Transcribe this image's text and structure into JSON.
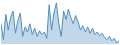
{
  "chart_data": {
    "type": "area",
    "values": [
      55,
      30,
      70,
      45,
      65,
      75,
      40,
      60,
      72,
      35,
      50,
      42,
      55,
      38,
      48,
      35,
      44,
      38,
      42,
      32,
      85,
      45,
      72,
      88,
      55,
      35,
      75,
      62,
      78,
      65,
      55,
      68,
      58,
      45,
      52,
      42,
      50,
      40,
      48,
      38,
      42,
      36,
      40,
      33,
      30,
      35,
      28,
      32,
      25,
      28
    ],
    "color": "#4f8fbf",
    "xlim": [
      0,
      49
    ],
    "ylim": [
      23,
      91
    ],
    "grid": false,
    "tick_labels": false
  }
}
